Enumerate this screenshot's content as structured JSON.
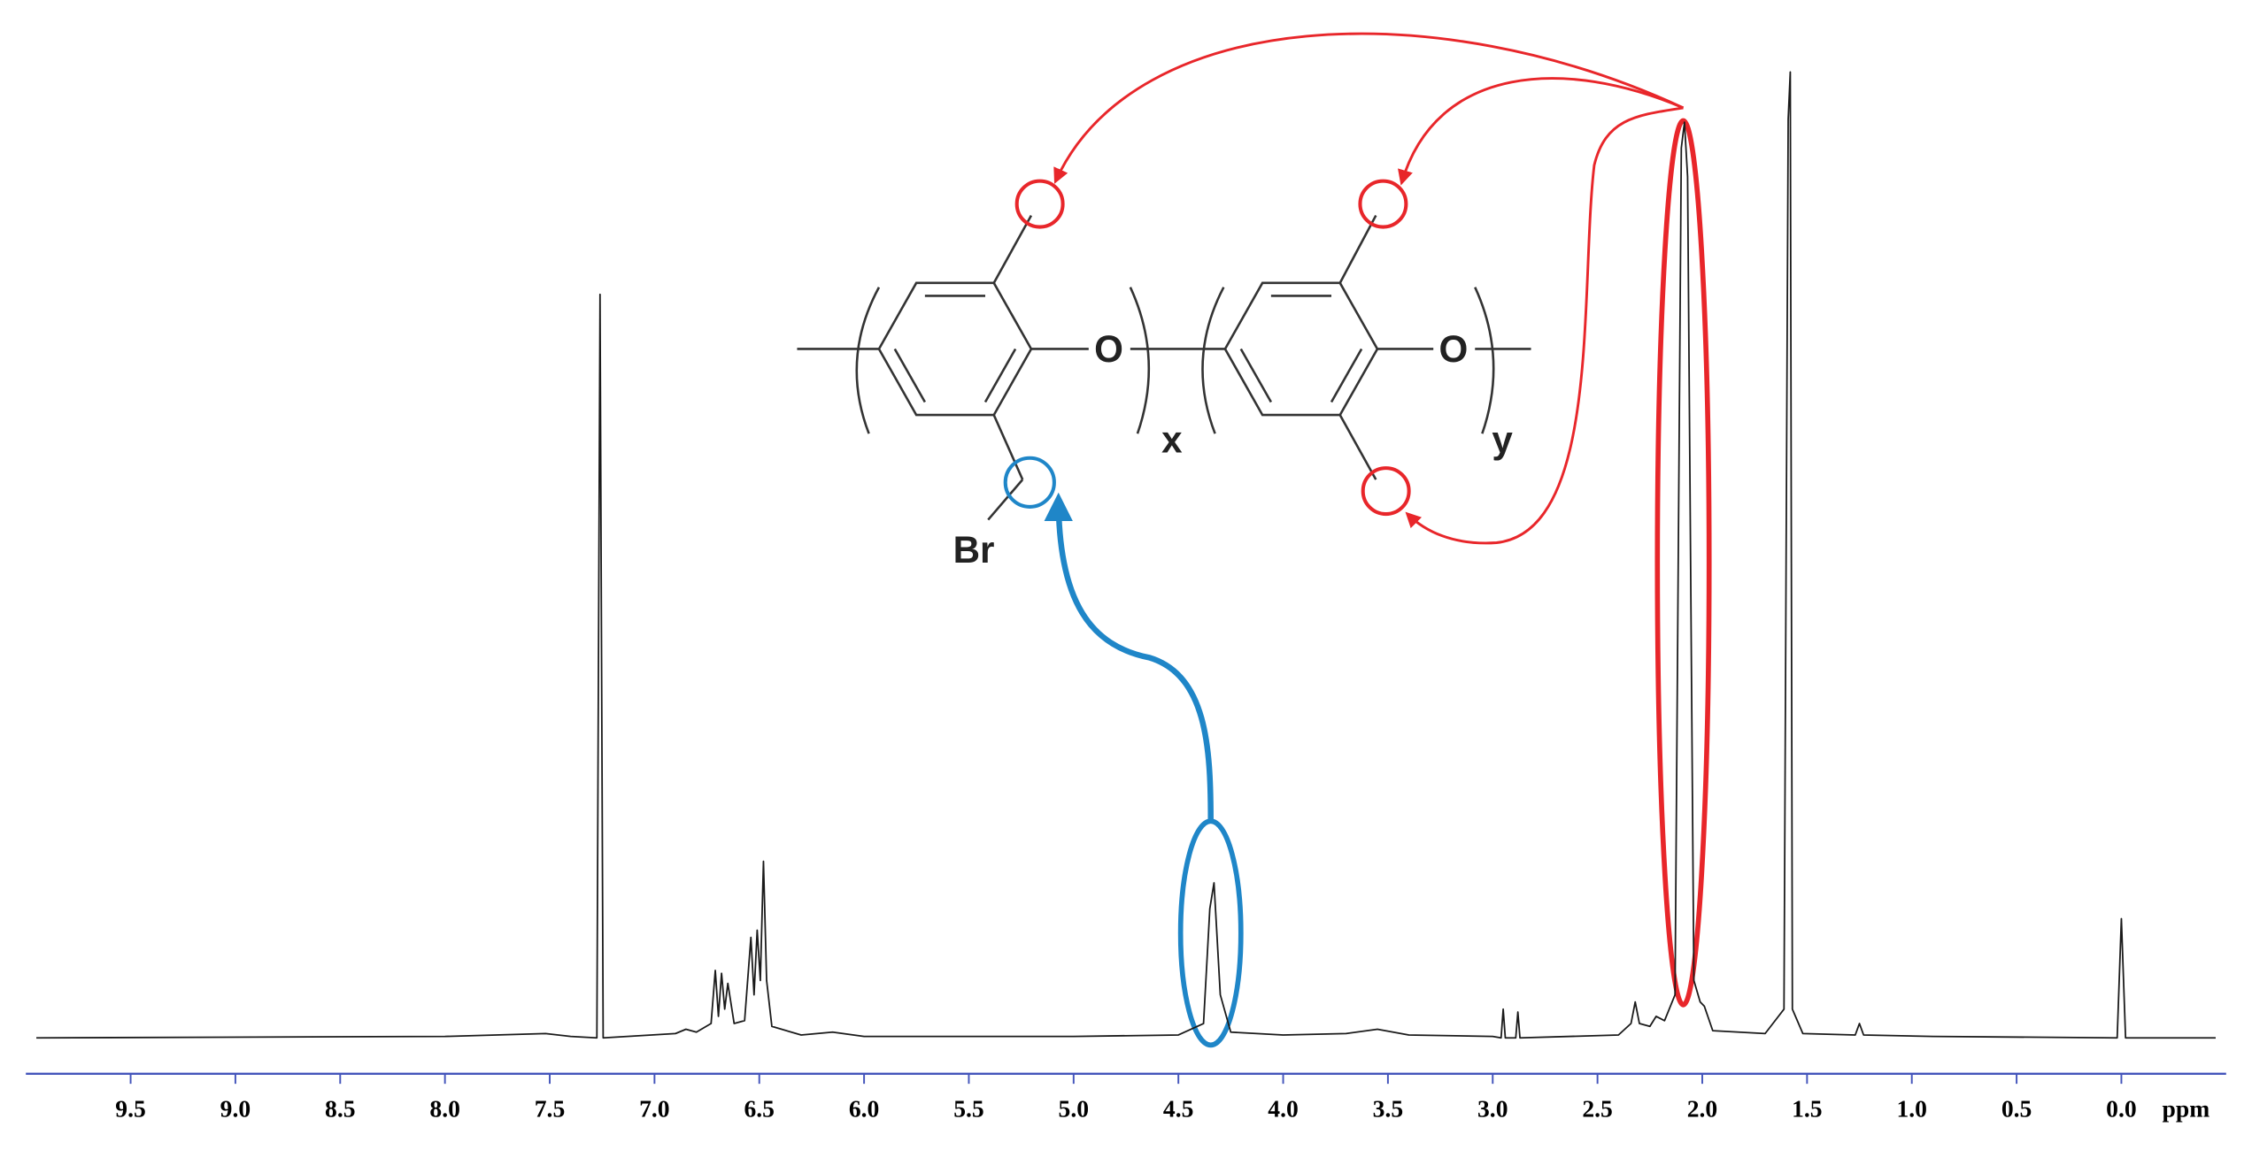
{
  "chart_data": {
    "type": "line",
    "x_label": "ppm",
    "xlim": [
      10,
      -0.5
    ],
    "ylim": [
      0,
      680
    ],
    "xticks": [
      9.5,
      {
        "value": 9,
        "label": "9.0"
      },
      8.5,
      {
        "value": 8,
        "label": "8.0"
      },
      7.5,
      {
        "value": 7,
        "label": "7.0"
      },
      6.5,
      {
        "value": 6,
        "label": "6.0"
      },
      5.5,
      {
        "value": 5,
        "label": "5.0"
      },
      4.5,
      {
        "value": 4,
        "label": "4.0"
      },
      3.5,
      {
        "value": 3,
        "label": "3.0"
      },
      2.5,
      {
        "value": 2,
        "label": "2.0"
      },
      1.5,
      {
        "value": 1,
        "label": "1.0"
      },
      0.5,
      {
        "value": 0,
        "label": "0.0"
      }
    ],
    "color": "#1a1a1a",
    "axis_color": "#4455bb",
    "x": [
      9.95,
      8.0,
      7.52,
      7.4,
      7.275,
      7.26,
      7.245,
      6.9,
      6.85,
      6.8,
      6.73,
      6.71,
      6.695,
      6.68,
      6.665,
      6.65,
      6.62,
      6.57,
      6.54,
      6.525,
      6.51,
      6.495,
      6.48,
      6.465,
      6.44,
      6.3,
      6.15,
      6.0,
      5.0,
      4.5,
      4.38,
      4.35,
      4.33,
      4.3,
      4.25,
      4.0,
      3.7,
      3.55,
      3.4,
      3.0,
      2.96,
      2.95,
      2.94,
      2.89,
      2.88,
      2.87,
      2.4,
      2.34,
      2.32,
      2.3,
      2.25,
      2.22,
      2.18,
      2.13,
      2.1,
      2.085,
      2.07,
      2.04,
      2.01,
      1.99,
      1.95,
      1.7,
      1.61,
      1.59,
      1.58,
      1.57,
      1.52,
      1.27,
      1.25,
      1.23,
      0.9,
      0.02,
      0.0,
      -0.02,
      -0.45
    ],
    "values": [
      0,
      1,
      3,
      1,
      0,
      518,
      0,
      3,
      6,
      4,
      10,
      47,
      15,
      45,
      20,
      38,
      10,
      12,
      70,
      30,
      75,
      40,
      123,
      40,
      8,
      2,
      4,
      1,
      1,
      2,
      10,
      90,
      108,
      30,
      4,
      2,
      3,
      6,
      2,
      1,
      0,
      20,
      0,
      0,
      18,
      0,
      2,
      10,
      25,
      10,
      8,
      15,
      12,
      30,
      620,
      638,
      600,
      40,
      25,
      22,
      5,
      3,
      20,
      640,
      673,
      20,
      3,
      2,
      10,
      2,
      1,
      0,
      83,
      0,
      0
    ],
    "annotations": [
      "O",
      "O",
      "x",
      "y",
      "Br"
    ]
  }
}
